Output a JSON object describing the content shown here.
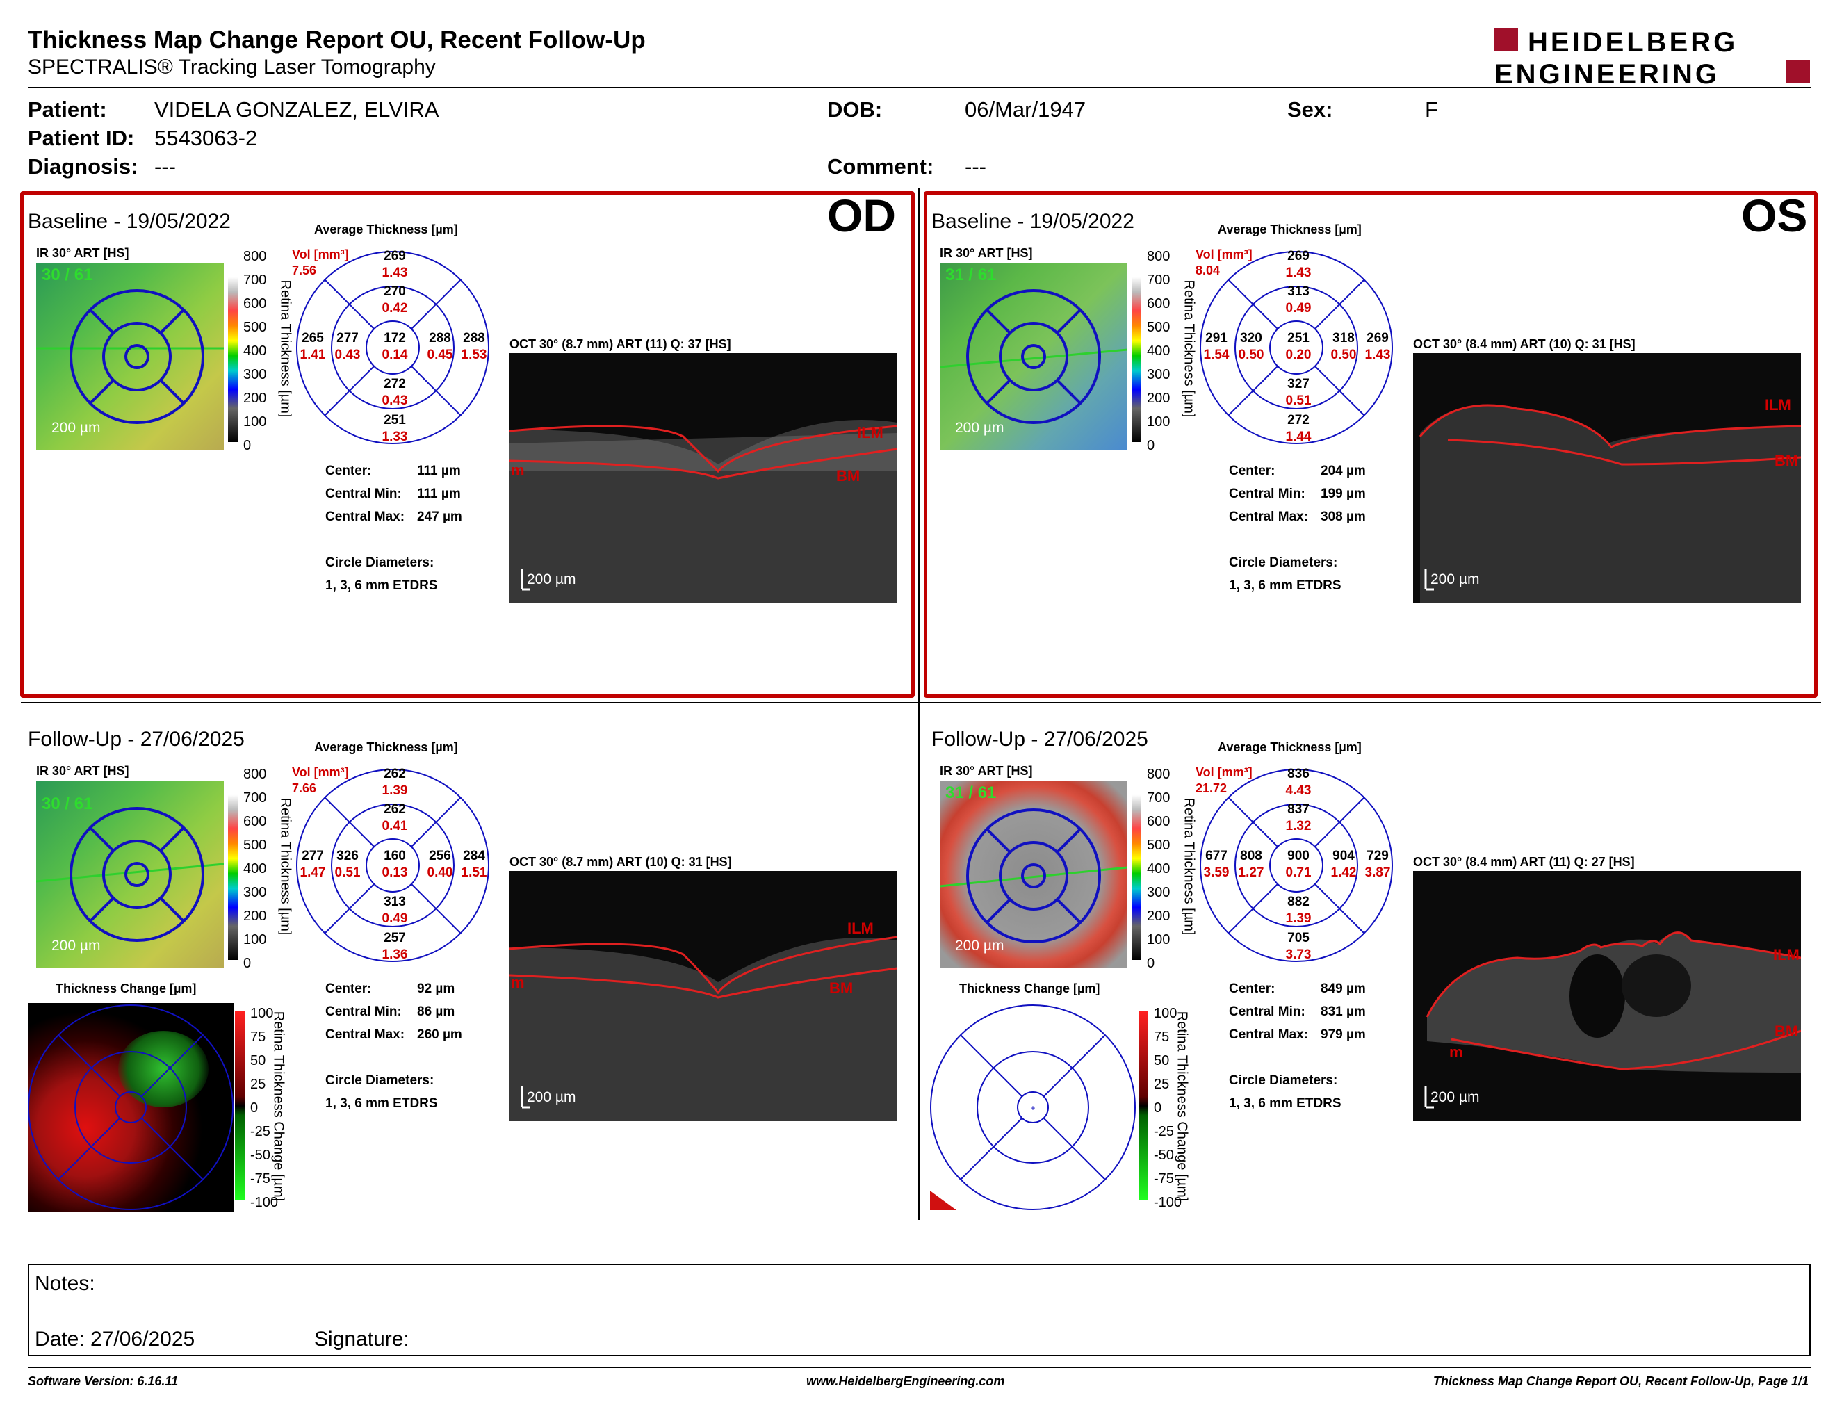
{
  "report": {
    "title": "Thickness Map Change Report OU, Recent Follow-Up",
    "subtitle": "SPECTRALIS® Tracking Laser Tomography",
    "logo_line1": "HEIDELBERG",
    "logo_line2": "ENGINEERING"
  },
  "patient": {
    "name_label": "Patient:",
    "name": "VIDELA GONZALEZ, ELVIRA",
    "id_label": "Patient ID:",
    "id": "5543063-2",
    "diagnosis_label": "Diagnosis:",
    "diagnosis": "---",
    "dob_label": "DOB:",
    "dob": "06/Mar/1947",
    "comment_label": "Comment:",
    "comment": "---",
    "sex_label": "Sex:",
    "sex": "F"
  },
  "common": {
    "ir_label": "IR 30° ART [HS]",
    "avg_label": "Average Thickness [µm]",
    "vol_label": "Vol [mm³]",
    "scale_200": "200 µm",
    "center_label": "Center:",
    "cmin_label": "Central Min:",
    "cmax_label": "Central Max:",
    "circle_label": "Circle Diameters:",
    "circle_value": "1, 3, 6 mm ETDRS",
    "thick_scale": [
      "800",
      "700",
      "600",
      "500",
      "400",
      "300",
      "200",
      "100",
      "0"
    ],
    "thick_axis": "Retina Thickness [µm]",
    "change_label": "Thickness Change [µm]",
    "change_scale": [
      "100",
      "75",
      "50",
      "25",
      "0",
      "-25",
      "-50",
      "-75",
      "-100"
    ],
    "change_axis": "Retina Thickness Change [µm]",
    "ilm": "ILM",
    "bm": "BM",
    "m": "m",
    "colors": {
      "frame": "#c00000",
      "grid": "#1010c0",
      "vol": "#d00000"
    }
  },
  "od_base": {
    "eye": "OD",
    "title": "Baseline - 19/05/2022",
    "fixation": "30 / 61",
    "vol": "7.56",
    "grid": {
      "c": [
        "172",
        "0.14"
      ],
      "it": [
        "270",
        "0.42"
      ],
      "ot": [
        "269",
        "1.43"
      ],
      "ib": [
        "272",
        "0.43"
      ],
      "ob": [
        "251",
        "1.33"
      ],
      "il": [
        "277",
        "0.43"
      ],
      "ol": [
        "265",
        "1.41"
      ],
      "ir": [
        "288",
        "0.45"
      ],
      "or": [
        "288",
        "1.53"
      ]
    },
    "oct_label": "OCT 30° (8.7 mm) ART (11) Q: 37 [HS]",
    "center": "111 µm",
    "cmin": "111 µm",
    "cmax": "247 µm"
  },
  "os_base": {
    "eye": "OS",
    "title": "Baseline - 19/05/2022",
    "fixation": "31 / 61",
    "vol": "8.04",
    "grid": {
      "c": [
        "251",
        "0.20"
      ],
      "it": [
        "313",
        "0.49"
      ],
      "ot": [
        "269",
        "1.43"
      ],
      "ib": [
        "327",
        "0.51"
      ],
      "ob": [
        "272",
        "1.44"
      ],
      "il": [
        "320",
        "0.50"
      ],
      "ol": [
        "291",
        "1.54"
      ],
      "ir": [
        "318",
        "0.50"
      ],
      "or": [
        "269",
        "1.43"
      ]
    },
    "oct_label": "OCT 30° (8.4 mm) ART (10) Q: 31 [HS]",
    "center": "204 µm",
    "cmin": "199 µm",
    "cmax": "308 µm"
  },
  "od_fu": {
    "title": "Follow-Up - 27/06/2025",
    "fixation": "30 / 61",
    "vol": "7.66",
    "grid": {
      "c": [
        "160",
        "0.13"
      ],
      "it": [
        "262",
        "0.41"
      ],
      "ot": [
        "262",
        "1.39"
      ],
      "ib": [
        "313",
        "0.49"
      ],
      "ob": [
        "257",
        "1.36"
      ],
      "il": [
        "326",
        "0.51"
      ],
      "ol": [
        "277",
        "1.47"
      ],
      "ir": [
        "256",
        "0.40"
      ],
      "or": [
        "284",
        "1.51"
      ]
    },
    "oct_label": "OCT 30° (8.7 mm) ART (10) Q: 31 [HS]",
    "center": "92 µm",
    "cmin": "86 µm",
    "cmax": "260 µm"
  },
  "os_fu": {
    "title": "Follow-Up - 27/06/2025",
    "fixation": "31 / 61",
    "vol": "21.72",
    "grid": {
      "c": [
        "900",
        "0.71"
      ],
      "it": [
        "837",
        "1.32"
      ],
      "ot": [
        "836",
        "4.43"
      ],
      "ib": [
        "882",
        "1.39"
      ],
      "ob": [
        "705",
        "3.73"
      ],
      "il": [
        "808",
        "1.27"
      ],
      "ol": [
        "677",
        "3.59"
      ],
      "ir": [
        "904",
        "1.42"
      ],
      "or": [
        "729",
        "3.87"
      ]
    },
    "oct_label": "OCT 30° (8.4 mm) ART (11) Q: 27 [HS]",
    "center": "849 µm",
    "cmin": "831 µm",
    "cmax": "979 µm"
  },
  "notes": {
    "label": "Notes:",
    "date_label": "Date: 27/06/2025",
    "sig_label": "Signature:"
  },
  "footer": {
    "left": "Software Version: 6.16.11",
    "center": "www.HeidelbergEngineering.com",
    "right": "Thickness Map Change Report OU, Recent Follow-Up, Page 1/1"
  }
}
